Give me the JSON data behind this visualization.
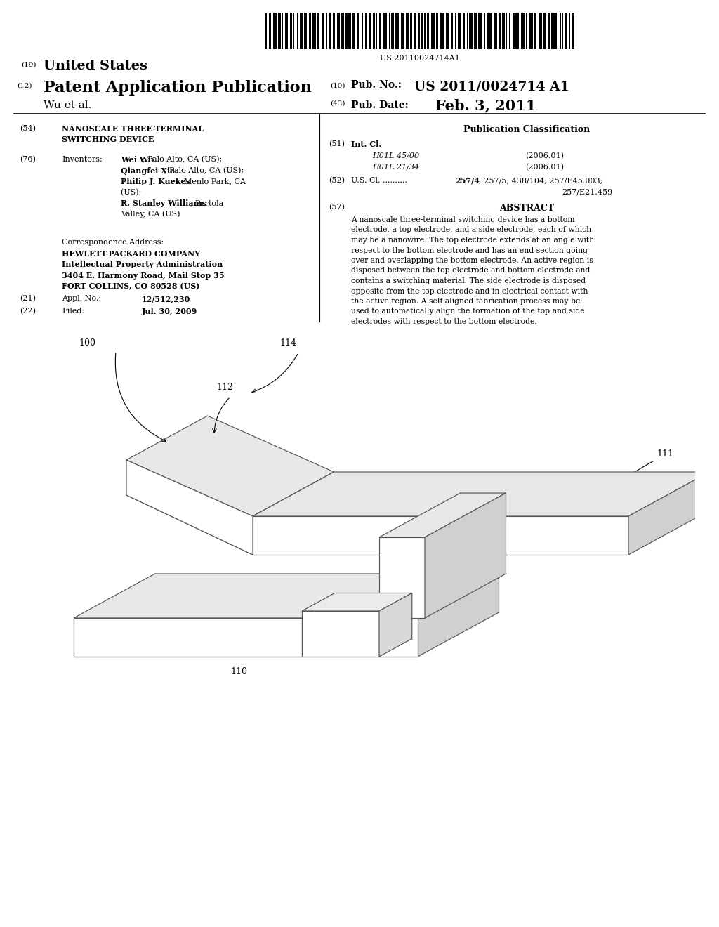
{
  "bg_color": "#ffffff",
  "barcode_text": "US 20110024714A1",
  "header_us": "United States",
  "header_pat": "Patent Application Publication",
  "header_wu": "Wu et al.",
  "pub_no_label": "Pub. No.:",
  "pub_no_val": "US 2011/0024714 A1",
  "pub_date_label": "Pub. Date:",
  "pub_date_val": "Feb. 3, 2011",
  "title_text1": "NANOSCALE THREE-TERMINAL",
  "title_text2": "SWITCHING DEVICE",
  "pub_class": "Publication Classification",
  "int_cl_label": "Int. Cl.",
  "int_cl_1": "H01L 45/00",
  "int_cl_1_yr": "(2006.01)",
  "int_cl_2": "H01L 21/34",
  "int_cl_2_yr": "(2006.01)",
  "us_cl_pre": "U.S. Cl. ..........",
  "us_cl_bold": "257/4",
  "us_cl_rest": "; 257/5; 438/104; 257/E45.003;",
  "us_cl_rest2": "257/E21.459",
  "abstract_title": "ABSTRACT",
  "abstract_lines": [
    "A nanoscale three-terminal switching device has a bottom",
    "electrode, a top electrode, and a side electrode, each of which",
    "may be a nanowire. The top electrode extends at an angle with",
    "respect to the bottom electrode and has an end section going",
    "over and overlapping the bottom electrode. An active region is",
    "disposed between the top electrode and bottom electrode and",
    "contains a switching material. The side electrode is disposed",
    "opposite from the top electrode and in electrical contact with",
    "the active region. A self-aligned fabrication process may be",
    "used to automatically align the formation of the top and side",
    "electrodes with respect to the bottom electrode."
  ],
  "inv_label": "Inventors:",
  "inv_lines": [
    [
      "Wei Wu",
      ", Palo Alto, CA (US);"
    ],
    [
      "Qiangfei Xia",
      ", Palo Alto, CA (US);"
    ],
    [
      "Philip J. Kuekes",
      ", Menlo Park, CA"
    ],
    [
      "",
      "(US); "
    ],
    [
      "R. Stanley Williams",
      ", Portola"
    ],
    [
      "",
      "Valley, CA (US)"
    ]
  ],
  "corr_header": "Correspondence Address:",
  "corr_lines": [
    "HEWLETT-PACKARD COMPANY",
    "Intellectual Property Administration",
    "3404 E. Harmony Road, Mail Stop 35",
    "FORT COLLINS, CO 80528 (US)"
  ],
  "appl_val": "12/512,230",
  "filed_val": "Jul. 30, 2009"
}
